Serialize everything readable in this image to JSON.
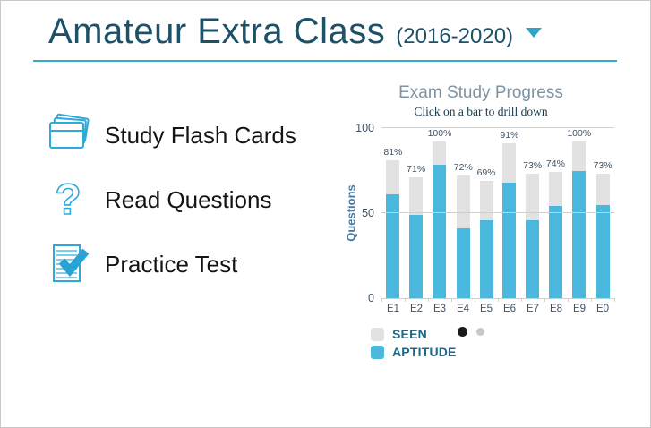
{
  "header": {
    "title": "Amateur Extra Class",
    "year_range": "(2016-2020)"
  },
  "menu": {
    "items": [
      {
        "label": "Study Flash Cards",
        "icon": "flash-cards-icon"
      },
      {
        "label": "Read Questions",
        "icon": "question-mark-icon"
      },
      {
        "label": "Practice Test",
        "icon": "practice-test-icon"
      }
    ]
  },
  "chart_data": {
    "type": "bar",
    "stacked": true,
    "title": "Exam Study Progress",
    "subtitle": "Click on a bar to drill down",
    "ylabel": "Questions",
    "xlabel": "",
    "ylim": [
      0,
      100
    ],
    "yticks": [
      0,
      50,
      100
    ],
    "grid": true,
    "legend_position": "bottom-left",
    "categories": [
      "E1",
      "E2",
      "E3",
      "E4",
      "E5",
      "E6",
      "E7",
      "E8",
      "E9",
      "E0"
    ],
    "series": [
      {
        "name": "SEEN",
        "color": "#e2e2e2",
        "values": [
          81,
          71,
          100,
          72,
          69,
          91,
          73,
          74,
          100,
          73
        ],
        "note": "total bar height (questions seen)"
      },
      {
        "name": "APTITUDE",
        "color": "#4ab8dc",
        "values": [
          61,
          49,
          85,
          41,
          46,
          68,
          46,
          54,
          81,
          55
        ]
      }
    ],
    "bar_labels": [
      "81%",
      "71%",
      "100%",
      "72%",
      "69%",
      "91%",
      "73%",
      "74%",
      "100%",
      "73%"
    ]
  },
  "pagination": {
    "dots": [
      {
        "state": "active"
      },
      {
        "state": "inactive"
      }
    ]
  },
  "colors": {
    "heading_teal": "#1d5168",
    "accent_blue": "#2fa9da",
    "underline_blue": "#3aa6c9",
    "bar_blue": "#4ab8dc",
    "bar_gray": "#e2e2e2",
    "chart_title_gray": "#7f93a2",
    "axis_label": "#3e5266",
    "legend_text": "#17688a",
    "page_border": "#c9c9c9"
  }
}
